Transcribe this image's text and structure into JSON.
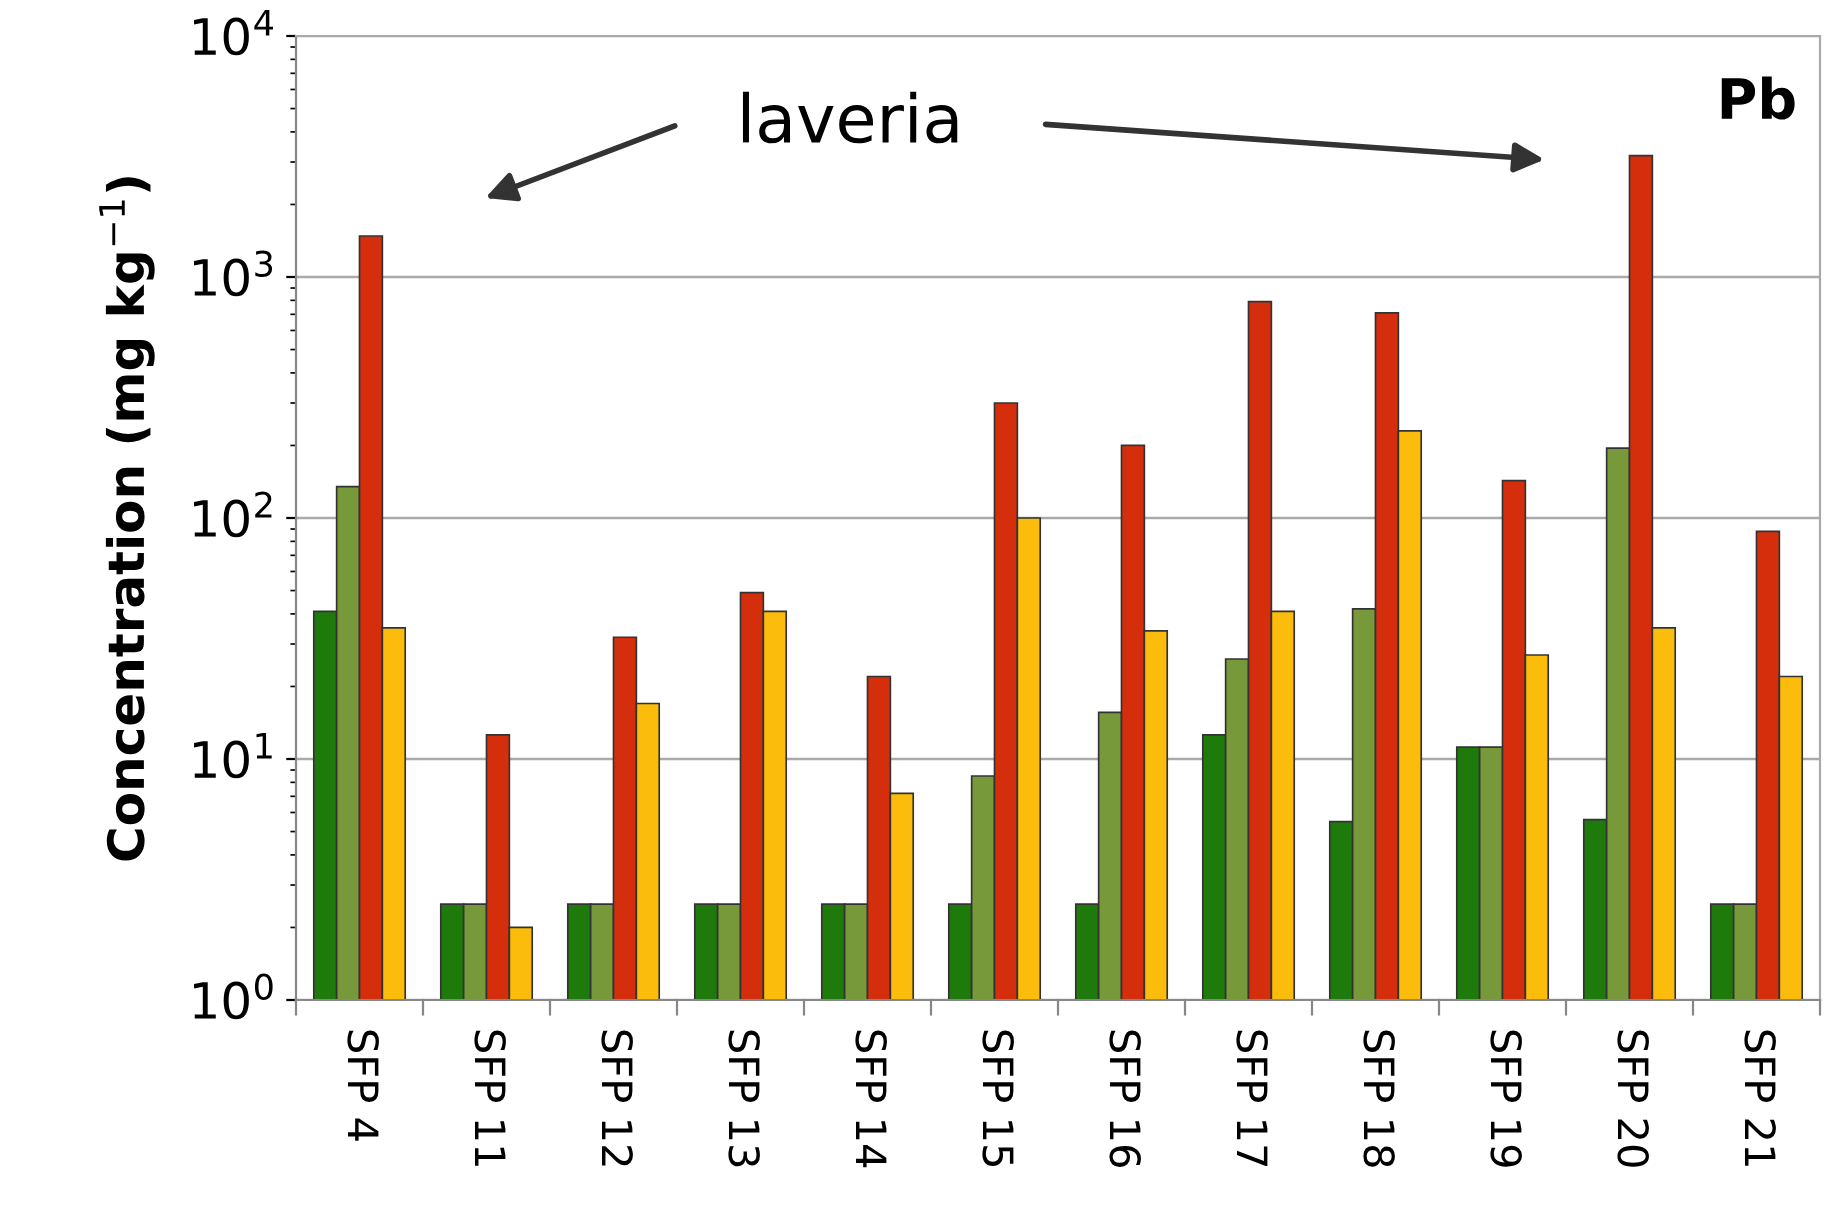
{
  "chart_data": {
    "type": "bar",
    "title": "Pb",
    "ylabel": "Concentration (mg kg$^{−1}$)",
    "categories": [
      "SFP 4",
      "SFP 11",
      "SFP 12",
      "SFP 13",
      "SFP 14",
      "SFP 15",
      "SFP 16",
      "SFP 17",
      "SFP 18",
      "SFP 19",
      "SFP 20",
      "SFP 21"
    ],
    "series": [
      {
        "color": "#1e7a0a",
        "values": [
          41,
          2.5,
          2.5,
          2.5,
          2.5,
          2.5,
          2.5,
          12.6,
          5.5,
          11.2,
          5.6,
          2.5
        ]
      },
      {
        "color": "#77993a",
        "values": [
          135,
          2.5,
          2.5,
          2.5,
          2.5,
          8.5,
          15.6,
          26,
          42,
          11.2,
          195,
          2.5
        ]
      },
      {
        "color": "#d42e0c",
        "values": [
          1480,
          12.6,
          32,
          49,
          22,
          300,
          200,
          790,
          710,
          143,
          3190,
          88
        ]
      },
      {
        "color": "#fcbc0c",
        "values": [
          35,
          2.0,
          17,
          41,
          7.2,
          100,
          34,
          41,
          230,
          27,
          35,
          22
        ]
      }
    ],
    "log": "y",
    "ylim": [
      1,
      10000
    ],
    "yticks": [
      {
        "value": 1,
        "label": "10$^{0}$"
      },
      {
        "value": 10,
        "label": "10$^{1}$"
      },
      {
        "value": 100,
        "label": "10$^{2}$"
      },
      {
        "value": 1000,
        "label": "10$^{3}$"
      },
      {
        "value": 10000,
        "label": "10$^{4}$"
      }
    ],
    "grid": "y",
    "annotations": [
      "laveria"
    ]
  }
}
